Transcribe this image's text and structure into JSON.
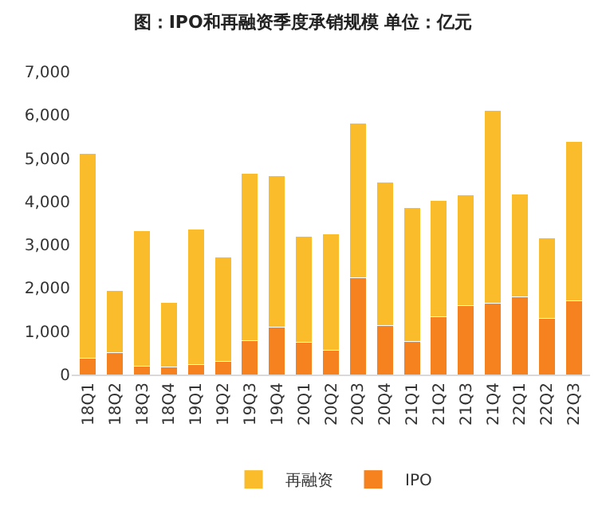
{
  "chart_data": {
    "type": "bar",
    "title": "图：IPO和再融资季度承销规模 单位：亿元",
    "categories": [
      "18Q1",
      "18Q2",
      "18Q3",
      "18Q4",
      "19Q1",
      "19Q2",
      "19Q3",
      "19Q4",
      "20Q1",
      "20Q2",
      "20Q3",
      "20Q4",
      "21Q1",
      "21Q2",
      "21Q3",
      "21Q4",
      "22Q1",
      "22Q2",
      "22Q3"
    ],
    "series": [
      {
        "name": "IPO",
        "color": "#f5821f",
        "values": [
          380,
          500,
          200,
          180,
          230,
          300,
          780,
          1100,
          750,
          560,
          2240,
          1140,
          760,
          1330,
          1590,
          1650,
          1790,
          1300,
          1700
        ]
      },
      {
        "name": "再融资",
        "color": "#fbbc2c",
        "values": [
          4730,
          1440,
          3120,
          1490,
          3140,
          2420,
          3870,
          3500,
          2450,
          2690,
          3580,
          3300,
          3100,
          2690,
          2570,
          4450,
          2390,
          1860,
          3690
        ]
      }
    ],
    "stacked": true,
    "ylim": [
      0,
      7000
    ],
    "yticks": [
      {
        "value": 0,
        "label": "0"
      },
      {
        "value": 1000,
        "label": "1,000"
      },
      {
        "value": 2000,
        "label": "2,000"
      },
      {
        "value": 3000,
        "label": "3,000"
      },
      {
        "value": 4000,
        "label": "4,000"
      },
      {
        "value": 5000,
        "label": "5,000"
      },
      {
        "value": 6000,
        "label": "6,000"
      },
      {
        "value": 7000,
        "label": "7,000"
      }
    ],
    "grid": false,
    "legend": "bottom"
  }
}
